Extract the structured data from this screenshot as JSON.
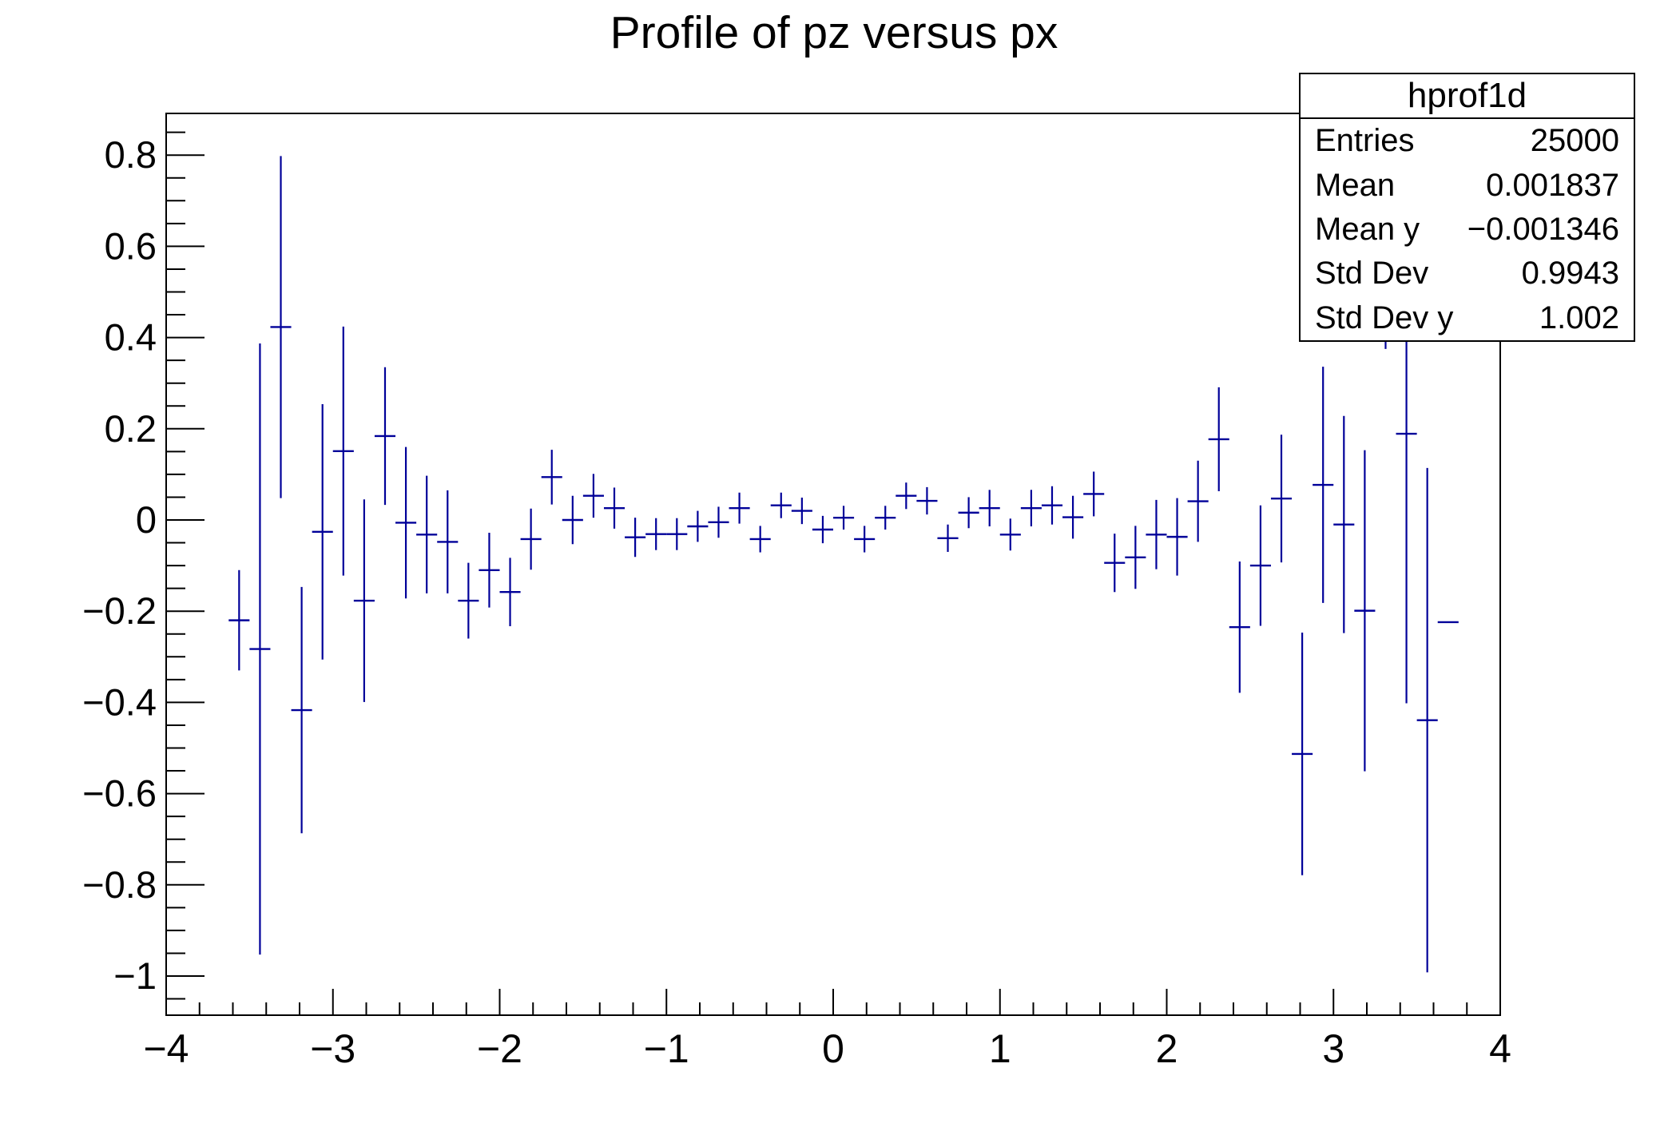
{
  "title": "Profile of pz versus px",
  "stats": {
    "title": "hprof1d",
    "rows": [
      {
        "label": "Entries",
        "value": "25000"
      },
      {
        "label": "Mean",
        "value": "0.001837"
      },
      {
        "label": "Mean y",
        "value": "−0.001346"
      },
      {
        "label": "Std Dev",
        "value": "0.9943"
      },
      {
        "label": "Std Dev y",
        "value": "1.002"
      }
    ]
  },
  "colors": {
    "marker": "#000099",
    "axis": "#000000",
    "background": "#ffffff"
  },
  "chart_data": {
    "type": "scatter",
    "subtype": "profile-histogram-error-bars",
    "title": "Profile of pz versus px",
    "xlabel": "",
    "ylabel": "",
    "xlim": [
      -4,
      4
    ],
    "ylim": [
      -1.086,
      0.891
    ],
    "grid": false,
    "legend": false,
    "bin_width": 0.125,
    "x_tick_values": [
      -4,
      -3,
      -2,
      -1,
      0,
      1,
      2,
      3,
      4
    ],
    "x_tick_labels": [
      "−4",
      "−3",
      "−2",
      "−1",
      "0",
      "1",
      "2",
      "3",
      "4"
    ],
    "x_minor_step": 0.2,
    "y_tick_values": [
      0.8,
      0.6,
      0.4,
      0.2,
      0,
      -0.2,
      -0.4,
      -0.6,
      -0.8,
      -1
    ],
    "y_tick_labels": [
      "0.8",
      "0.6",
      "0.4",
      "0.2",
      "0",
      "−0.2",
      "−0.4",
      "−0.6",
      "−0.8",
      "−1"
    ],
    "y_minor_step": 0.05,
    "points": [
      {
        "x": -3.5625,
        "y": -0.22,
        "err": 0.11
      },
      {
        "x": -3.4375,
        "y": -0.283,
        "err": 0.67
      },
      {
        "x": -3.3125,
        "y": 0.423,
        "err": 0.375
      },
      {
        "x": -3.1875,
        "y": -0.417,
        "err": 0.27
      },
      {
        "x": -3.0625,
        "y": -0.026,
        "err": 0.28
      },
      {
        "x": -2.9375,
        "y": 0.151,
        "err": 0.273
      },
      {
        "x": -2.8125,
        "y": -0.177,
        "err": 0.222
      },
      {
        "x": -2.6875,
        "y": 0.184,
        "err": 0.151
      },
      {
        "x": -2.5625,
        "y": -0.006,
        "err": 0.166
      },
      {
        "x": -2.4375,
        "y": -0.032,
        "err": 0.129
      },
      {
        "x": -2.3125,
        "y": -0.048,
        "err": 0.113
      },
      {
        "x": -2.1875,
        "y": -0.177,
        "err": 0.083
      },
      {
        "x": -2.0625,
        "y": -0.11,
        "err": 0.082
      },
      {
        "x": -1.9375,
        "y": -0.158,
        "err": 0.075
      },
      {
        "x": -1.8125,
        "y": -0.042,
        "err": 0.067
      },
      {
        "x": -1.6875,
        "y": 0.094,
        "err": 0.06
      },
      {
        "x": -1.5625,
        "y": 0.0,
        "err": 0.053
      },
      {
        "x": -1.4375,
        "y": 0.053,
        "err": 0.048
      },
      {
        "x": -1.3125,
        "y": 0.026,
        "err": 0.045
      },
      {
        "x": -1.1875,
        "y": -0.038,
        "err": 0.043
      },
      {
        "x": -1.0625,
        "y": -0.031,
        "err": 0.035
      },
      {
        "x": -0.9375,
        "y": -0.031,
        "err": 0.035
      },
      {
        "x": -0.8125,
        "y": -0.014,
        "err": 0.034
      },
      {
        "x": -0.6875,
        "y": -0.005,
        "err": 0.034
      },
      {
        "x": -0.5625,
        "y": 0.026,
        "err": 0.034
      },
      {
        "x": -0.4375,
        "y": -0.042,
        "err": 0.029
      },
      {
        "x": -0.3125,
        "y": 0.032,
        "err": 0.028
      },
      {
        "x": -0.1875,
        "y": 0.02,
        "err": 0.029
      },
      {
        "x": -0.0625,
        "y": -0.021,
        "err": 0.03
      },
      {
        "x": 0.0625,
        "y": 0.005,
        "err": 0.026
      },
      {
        "x": 0.1875,
        "y": -0.042,
        "err": 0.029
      },
      {
        "x": 0.3125,
        "y": 0.005,
        "err": 0.026
      },
      {
        "x": 0.4375,
        "y": 0.053,
        "err": 0.029
      },
      {
        "x": 0.5625,
        "y": 0.042,
        "err": 0.03
      },
      {
        "x": 0.6875,
        "y": -0.04,
        "err": 0.03
      },
      {
        "x": 0.8125,
        "y": 0.016,
        "err": 0.034
      },
      {
        "x": 0.9375,
        "y": 0.026,
        "err": 0.04
      },
      {
        "x": 1.0625,
        "y": -0.032,
        "err": 0.035
      },
      {
        "x": 1.1875,
        "y": 0.026,
        "err": 0.04
      },
      {
        "x": 1.3125,
        "y": 0.032,
        "err": 0.042
      },
      {
        "x": 1.4375,
        "y": 0.006,
        "err": 0.047
      },
      {
        "x": 1.5625,
        "y": 0.057,
        "err": 0.049
      },
      {
        "x": 1.6875,
        "y": -0.094,
        "err": 0.064
      },
      {
        "x": 1.8125,
        "y": -0.082,
        "err": 0.069
      },
      {
        "x": 1.9375,
        "y": -0.032,
        "err": 0.076
      },
      {
        "x": 2.0625,
        "y": -0.037,
        "err": 0.085
      },
      {
        "x": 2.1875,
        "y": 0.041,
        "err": 0.089
      },
      {
        "x": 2.3125,
        "y": 0.177,
        "err": 0.114
      },
      {
        "x": 2.4375,
        "y": -0.235,
        "err": 0.144
      },
      {
        "x": 2.5625,
        "y": -0.1,
        "err": 0.132
      },
      {
        "x": 2.6875,
        "y": 0.047,
        "err": 0.14
      },
      {
        "x": 2.8125,
        "y": -0.513,
        "err": 0.266
      },
      {
        "x": 2.9375,
        "y": 0.077,
        "err": 0.259
      },
      {
        "x": 3.0625,
        "y": -0.01,
        "err": 0.238
      },
      {
        "x": 3.1875,
        "y": -0.199,
        "err": 0.352
      },
      {
        "x": 3.3125,
        "y": 0.43,
        "err": 0.055
      },
      {
        "x": 3.4375,
        "y": 0.189,
        "err": 0.591
      },
      {
        "x": 3.5625,
        "y": -0.439,
        "err": 0.553
      },
      {
        "x": 3.6875,
        "y": -0.224,
        "err": 0.0
      }
    ]
  }
}
